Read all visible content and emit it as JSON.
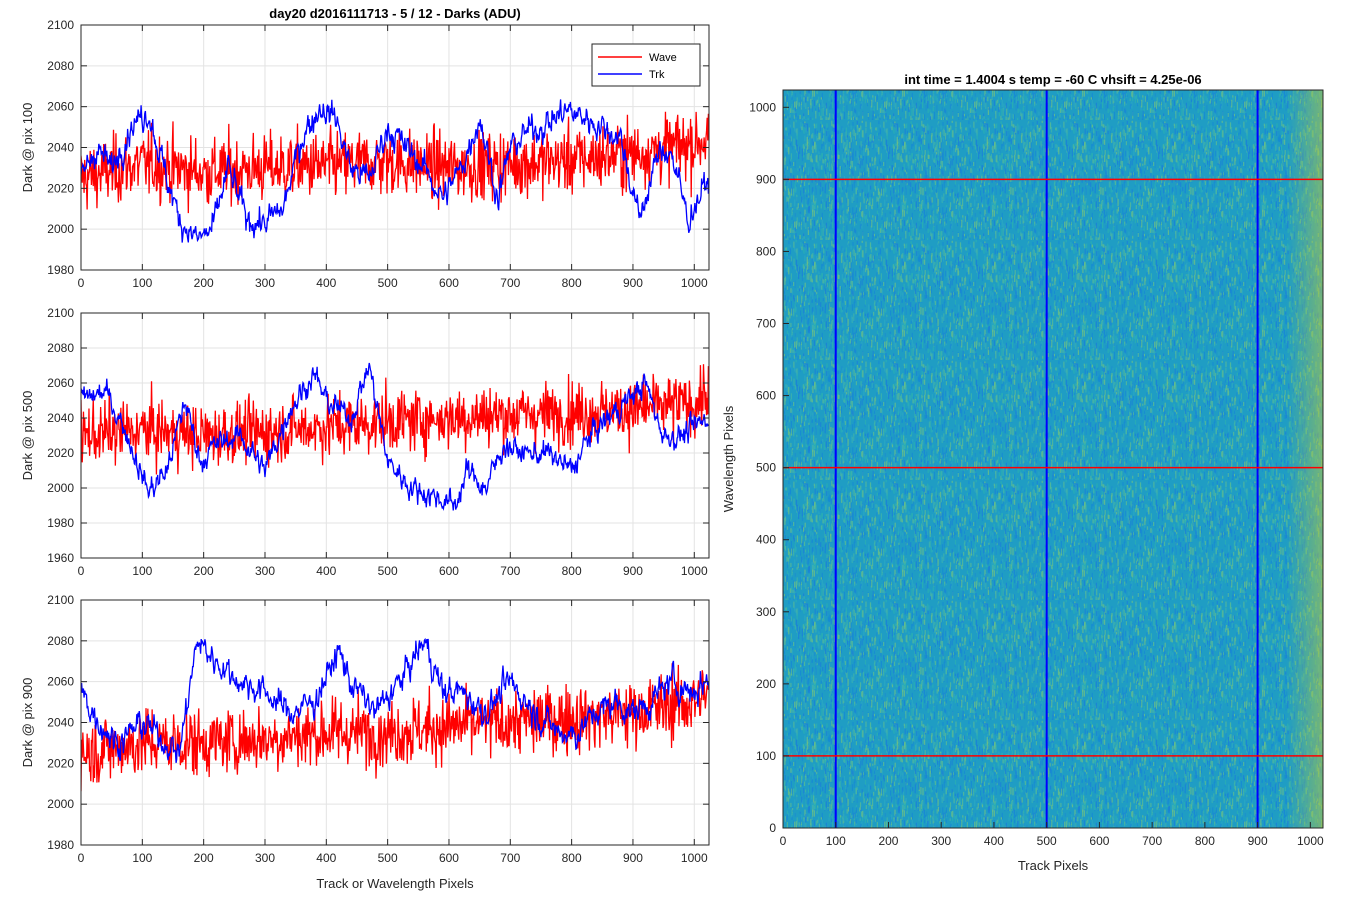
{
  "chart_data": [
    {
      "type": "line",
      "title": "day20 d2016111713 - 5 / 12 - Darks (ADU)",
      "xlabel": "",
      "ylabel": "Dark @ pix 100",
      "xlim": [
        0,
        1024
      ],
      "ylim": [
        1980,
        2100
      ],
      "xticks": [
        0,
        100,
        200,
        300,
        400,
        500,
        600,
        700,
        800,
        900,
        1000
      ],
      "yticks": [
        1980,
        2000,
        2020,
        2040,
        2060,
        2080,
        2100
      ],
      "grid": true,
      "legend": "top-right",
      "series": [
        {
          "name": "Wave",
          "color": "#ff0000",
          "mean": 2030,
          "noise": 14,
          "points": [
            [
              0,
              2025
            ],
            [
              100,
              2032
            ],
            [
              200,
              2028
            ],
            [
              300,
              2030
            ],
            [
              400,
              2031
            ],
            [
              500,
              2033
            ],
            [
              600,
              2030
            ],
            [
              700,
              2032
            ],
            [
              800,
              2034
            ],
            [
              900,
              2037
            ],
            [
              1000,
              2042
            ],
            [
              1024,
              2045
            ]
          ]
        },
        {
          "name": "Trk",
          "color": "#0000ff",
          "noise": 5,
          "points": [
            [
              0,
              2025
            ],
            [
              25,
              2040
            ],
            [
              50,
              2030
            ],
            [
              80,
              2050
            ],
            [
              110,
              2058
            ],
            [
              135,
              2030
            ],
            [
              160,
              2005
            ],
            [
              190,
              1995
            ],
            [
              215,
              2000
            ],
            [
              240,
              2030
            ],
            [
              270,
              2005
            ],
            [
              300,
              2003
            ],
            [
              330,
              2010
            ],
            [
              360,
              2045
            ],
            [
              390,
              2060
            ],
            [
              415,
              2055
            ],
            [
              440,
              2030
            ],
            [
              470,
              2025
            ],
            [
              500,
              2050
            ],
            [
              530,
              2040
            ],
            [
              560,
              2030
            ],
            [
              590,
              2015
            ],
            [
              620,
              2030
            ],
            [
              650,
              2055
            ],
            [
              680,
              2015
            ],
            [
              700,
              2040
            ],
            [
              730,
              2048
            ],
            [
              760,
              2052
            ],
            [
              790,
              2058
            ],
            [
              820,
              2055
            ],
            [
              850,
              2050
            ],
            [
              880,
              2045
            ],
            [
              910,
              2005
            ],
            [
              940,
              2035
            ],
            [
              960,
              2040
            ],
            [
              990,
              2005
            ],
            [
              1024,
              2025
            ]
          ]
        }
      ]
    },
    {
      "type": "line",
      "xlabel": "",
      "ylabel": "Dark @ pix 500",
      "xlim": [
        0,
        1024
      ],
      "ylim": [
        1960,
        2100
      ],
      "xticks": [
        0,
        100,
        200,
        300,
        400,
        500,
        600,
        700,
        800,
        900,
        1000
      ],
      "yticks": [
        1960,
        1980,
        2000,
        2020,
        2040,
        2060,
        2080,
        2100
      ],
      "grid": true,
      "series": [
        {
          "name": "Wave",
          "color": "#ff0000",
          "noise": 15,
          "points": [
            [
              0,
              2030
            ],
            [
              100,
              2033
            ],
            [
              200,
              2030
            ],
            [
              300,
              2032
            ],
            [
              400,
              2035
            ],
            [
              500,
              2038
            ],
            [
              600,
              2040
            ],
            [
              700,
              2042
            ],
            [
              800,
              2043
            ],
            [
              900,
              2045
            ],
            [
              1000,
              2048
            ],
            [
              1024,
              2055
            ]
          ]
        },
        {
          "name": "Trk",
          "color": "#0000ff",
          "noise": 5,
          "points": [
            [
              0,
              2050
            ],
            [
              40,
              2055
            ],
            [
              70,
              2035
            ],
            [
              110,
              1998
            ],
            [
              140,
              2010
            ],
            [
              170,
              2050
            ],
            [
              195,
              2015
            ],
            [
              220,
              2025
            ],
            [
              260,
              2030
            ],
            [
              300,
              2010
            ],
            [
              340,
              2045
            ],
            [
              380,
              2065
            ],
            [
              400,
              2050
            ],
            [
              440,
              2040
            ],
            [
              470,
              2070
            ],
            [
              500,
              2015
            ],
            [
              540,
              2000
            ],
            [
              580,
              1995
            ],
            [
              610,
              1990
            ],
            [
              630,
              2010
            ],
            [
              660,
              2000
            ],
            [
              690,
              2025
            ],
            [
              720,
              2020
            ],
            [
              760,
              2020
            ],
            [
              800,
              2010
            ],
            [
              830,
              2030
            ],
            [
              860,
              2040
            ],
            [
              890,
              2050
            ],
            [
              920,
              2060
            ],
            [
              950,
              2030
            ],
            [
              980,
              2030
            ],
            [
              1024,
              2040
            ]
          ]
        }
      ]
    },
    {
      "type": "line",
      "xlabel": "Track or Wavelength Pixels",
      "ylabel": "Dark @ pix 900",
      "xlim": [
        0,
        1024
      ],
      "ylim": [
        1980,
        2100
      ],
      "xticks": [
        0,
        100,
        200,
        300,
        400,
        500,
        600,
        700,
        800,
        900,
        1000
      ],
      "yticks": [
        1980,
        2000,
        2020,
        2040,
        2060,
        2080,
        2100
      ],
      "grid": true,
      "series": [
        {
          "name": "Wave",
          "color": "#ff0000",
          "noise": 14,
          "points": [
            [
              0,
              2025
            ],
            [
              100,
              2030
            ],
            [
              200,
              2030
            ],
            [
              300,
              2032
            ],
            [
              400,
              2035
            ],
            [
              500,
              2035
            ],
            [
              600,
              2038
            ],
            [
              700,
              2040
            ],
            [
              800,
              2042
            ],
            [
              900,
              2045
            ],
            [
              1000,
              2050
            ],
            [
              1024,
              2055
            ]
          ]
        },
        {
          "name": "Trk",
          "color": "#0000ff",
          "noise": 5,
          "points": [
            [
              0,
              2055
            ],
            [
              30,
              2040
            ],
            [
              60,
              2030
            ],
            [
              100,
              2040
            ],
            [
              140,
              2030
            ],
            [
              160,
              2025
            ],
            [
              190,
              2080
            ],
            [
              220,
              2070
            ],
            [
              260,
              2060
            ],
            [
              300,
              2055
            ],
            [
              340,
              2045
            ],
            [
              380,
              2050
            ],
            [
              420,
              2075
            ],
            [
              440,
              2060
            ],
            [
              480,
              2045
            ],
            [
              520,
              2060
            ],
            [
              560,
              2080
            ],
            [
              590,
              2055
            ],
            [
              620,
              2055
            ],
            [
              660,
              2045
            ],
            [
              700,
              2060
            ],
            [
              740,
              2045
            ],
            [
              780,
              2035
            ],
            [
              810,
              2035
            ],
            [
              840,
              2045
            ],
            [
              870,
              2050
            ],
            [
              900,
              2045
            ],
            [
              930,
              2050
            ],
            [
              960,
              2060
            ],
            [
              1000,
              2055
            ],
            [
              1024,
              2062
            ]
          ]
        }
      ]
    },
    {
      "type": "heatmap",
      "title": "int time = 1.4004 s    temp = -60 C    vhsift = 4.25e-06",
      "xlabel": "Track Pixels",
      "ylabel": "Wavelength Pixels",
      "xlim": [
        0,
        1024
      ],
      "ylim": [
        0,
        1024
      ],
      "xticks": [
        0,
        100,
        200,
        300,
        400,
        500,
        600,
        700,
        800,
        900,
        1000
      ],
      "yticks": [
        0,
        100,
        200,
        300,
        400,
        500,
        600,
        700,
        800,
        900,
        1000
      ],
      "colormap": "parula",
      "vertical_lines": {
        "x": [
          100,
          500,
          900
        ],
        "color": "#0000ff"
      },
      "horizontal_lines": {
        "y": [
          100,
          500,
          900
        ],
        "color": "#ff0000"
      }
    }
  ]
}
